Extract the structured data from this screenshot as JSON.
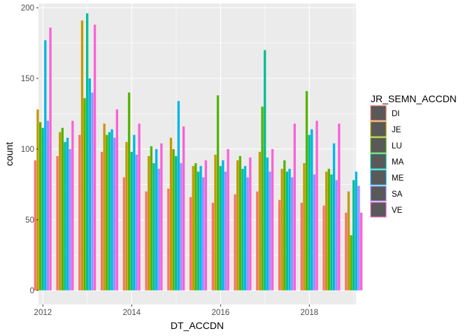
{
  "chart_data": {
    "type": "bar",
    "xlabel": "DT_ACCDN",
    "ylabel": "count",
    "x_ticks": [
      "2012",
      "2014",
      "2016",
      "2018"
    ],
    "x_tick_values": [
      2012,
      2014,
      2016,
      2018
    ],
    "y_ticks": [
      "0",
      "50",
      "100",
      "150",
      "200"
    ],
    "y_tick_values": [
      0,
      50,
      100,
      150,
      200
    ],
    "xlim": [
      2011.9,
      2019.05
    ],
    "ylim": [
      -10,
      203
    ],
    "grid": true,
    "legend_position": "right",
    "legend": {
      "title": "JR_SEMN_ACCDN",
      "items": [
        {
          "label": "DI",
          "color": "#F8766D"
        },
        {
          "label": "JE",
          "color": "#C49A00"
        },
        {
          "label": "LU",
          "color": "#53B400"
        },
        {
          "label": "MA",
          "color": "#00C094"
        },
        {
          "label": "ME",
          "color": "#00B6EB"
        },
        {
          "label": "SA",
          "color": "#A58AFF"
        },
        {
          "label": "VE",
          "color": "#FB61D7"
        }
      ]
    },
    "series": [
      {
        "name": "DI",
        "color": "#F8766D",
        "x": [
          2012.0,
          2012.5,
          2013.0,
          2013.5,
          2014.0,
          2014.5,
          2015.0,
          2015.5,
          2016.0,
          2016.5,
          2017.0,
          2017.5,
          2018.0,
          2018.5,
          2019.0
        ],
        "values": [
          92,
          95,
          110,
          98,
          80,
          70,
          72,
          66,
          62,
          68,
          70,
          64,
          62,
          60,
          55
        ]
      },
      {
        "name": "JE",
        "color": "#C49A00",
        "x": [
          2012.0,
          2012.5,
          2013.0,
          2013.5,
          2014.0,
          2014.5,
          2015.0,
          2015.5,
          2016.0,
          2016.5,
          2017.0,
          2017.5,
          2018.0,
          2018.5,
          2019.0
        ],
        "values": [
          128,
          112,
          191,
          118,
          105,
          95,
          108,
          88,
          96,
          92,
          98,
          86,
          90,
          84,
          70
        ]
      },
      {
        "name": "LU",
        "color": "#53B400",
        "x": [
          2012.0,
          2012.5,
          2013.0,
          2013.5,
          2014.0,
          2014.5,
          2015.0,
          2015.5,
          2016.0,
          2016.5,
          2017.0,
          2017.5,
          2018.0,
          2018.5,
          2019.0
        ],
        "values": [
          119,
          115,
          136,
          110,
          140,
          102,
          100,
          90,
          138,
          95,
          130,
          92,
          141,
          86,
          39
        ]
      },
      {
        "name": "MA",
        "color": "#00C094",
        "x": [
          2012.0,
          2012.5,
          2013.0,
          2013.5,
          2014.0,
          2014.5,
          2015.0,
          2015.5,
          2016.0,
          2016.5,
          2017.0,
          2017.5,
          2018.0,
          2018.5,
          2019.0
        ],
        "values": [
          115,
          105,
          196,
          112,
          98,
          90,
          95,
          84,
          88,
          86,
          170,
          84,
          110,
          82,
          78
        ]
      },
      {
        "name": "ME",
        "color": "#00B6EB",
        "x": [
          2012.0,
          2012.5,
          2013.0,
          2013.5,
          2014.0,
          2014.5,
          2015.0,
          2015.5,
          2016.0,
          2016.5,
          2017.0,
          2017.5,
          2018.0,
          2018.5,
          2019.0
        ],
        "values": [
          177,
          108,
          150,
          114,
          110,
          100,
          134,
          88,
          92,
          88,
          94,
          86,
          114,
          104,
          84
        ]
      },
      {
        "name": "SA",
        "color": "#A58AFF",
        "x": [
          2012.0,
          2012.5,
          2013.0,
          2013.5,
          2014.0,
          2014.5,
          2015.0,
          2015.5,
          2016.0,
          2016.5,
          2017.0,
          2017.5,
          2018.0,
          2018.5,
          2019.0
        ],
        "values": [
          120,
          100,
          140,
          108,
          96,
          86,
          90,
          80,
          84,
          80,
          84,
          80,
          82,
          78,
          74
        ]
      },
      {
        "name": "VE",
        "color": "#FB61D7",
        "x": [
          2012.0,
          2012.5,
          2013.0,
          2013.5,
          2014.0,
          2014.5,
          2015.0,
          2015.5,
          2016.0,
          2016.5,
          2017.0,
          2017.5,
          2018.0,
          2018.5,
          2019.0
        ],
        "values": [
          186,
          120,
          188,
          128,
          118,
          104,
          116,
          92,
          100,
          94,
          100,
          118,
          120,
          118,
          55
        ]
      }
    ]
  }
}
